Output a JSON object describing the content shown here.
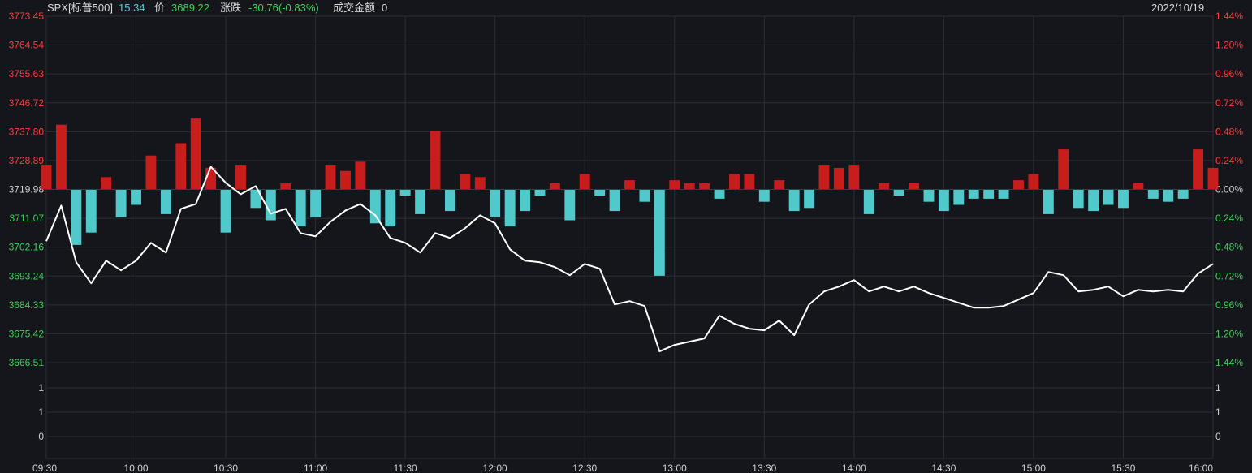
{
  "header": {
    "symbol": "SPX[标普500]",
    "time": "15:34",
    "price_label": "价",
    "price": "3689.22",
    "change_label": "涨跌",
    "change": "-30.76(-0.83%)",
    "amount_label": "成交金额",
    "amount": "0",
    "date": "2022/10/19"
  },
  "colors": {
    "background": "#14161b",
    "grid": "#2c2f36",
    "up": "#ff3b3b",
    "down": "#3fcf5a",
    "neutral": "#d0d0d0",
    "price_line": "#ffffff",
    "bar_up": "#c81d1d",
    "bar_down": "#4fc9c9"
  },
  "chart_data": {
    "type": "line",
    "ylim": [
      3666.51,
      3773.45
    ],
    "reference_price": 3719.98,
    "left_ticks": [
      "3773.45",
      "3764.54",
      "3755.63",
      "3746.72",
      "3737.80",
      "3728.89",
      "3719.98",
      "3711.07",
      "3702.16",
      "3693.24",
      "3684.33",
      "3675.42",
      "3666.51"
    ],
    "right_ticks": [
      "1.44%",
      "1.20%",
      "0.96%",
      "0.72%",
      "0.48%",
      "0.24%",
      "0.00%",
      "0.24%",
      "0.48%",
      "0.72%",
      "0.96%",
      "1.20%",
      "1.44%"
    ],
    "volume_left_ticks": [
      "1",
      "1",
      "0"
    ],
    "volume_right_ticks": [
      "1",
      "1",
      "0"
    ],
    "x_ticks": [
      "09:30",
      "10:00",
      "10:30",
      "11:00",
      "11:30",
      "12:00",
      "12:30",
      "13:00",
      "13:30",
      "14:00",
      "14:30",
      "15:00",
      "15:30",
      "16:00"
    ],
    "series": [
      {
        "x": [
          "09:30",
          "09:35",
          "09:40",
          "09:45",
          "09:50",
          "09:55",
          "10:00",
          "10:05",
          "10:10",
          "10:15",
          "10:20",
          "10:25",
          "10:30",
          "10:35",
          "10:40",
          "10:45",
          "10:50",
          "10:55",
          "11:00",
          "11:05",
          "11:10",
          "11:15",
          "11:20",
          "11:25",
          "11:30",
          "11:35",
          "11:40",
          "11:45",
          "11:50",
          "11:55",
          "12:00",
          "12:05",
          "12:10",
          "12:15",
          "12:20",
          "12:25",
          "12:30",
          "12:35",
          "12:40",
          "12:45",
          "12:50",
          "12:55",
          "13:00",
          "13:05",
          "13:10",
          "13:15",
          "13:20",
          "13:25",
          "13:30",
          "13:35",
          "13:40",
          "13:45",
          "13:50",
          "13:55",
          "14:00",
          "14:05",
          "14:10",
          "14:15",
          "14:20",
          "14:25",
          "14:30",
          "14:35",
          "14:40",
          "14:45",
          "14:50",
          "14:55",
          "15:00",
          "15:05",
          "15:10",
          "15:15",
          "15:20",
          "15:25",
          "15:30",
          "15:35",
          "15:40",
          "15:45",
          "15:50",
          "15:55",
          "16:00"
        ],
        "values": [
          3704.0,
          3715.0,
          3697.5,
          3691.0,
          3698.0,
          3695.0,
          3698.0,
          3703.5,
          3700.5,
          3714.0,
          3715.5,
          3727.0,
          3722.0,
          3718.5,
          3721.0,
          3712.5,
          3714.0,
          3706.5,
          3705.5,
          3710.0,
          3713.5,
          3715.5,
          3712.0,
          3705.0,
          3703.5,
          3700.5,
          3706.5,
          3705.0,
          3708.0,
          3712.0,
          3709.5,
          3701.5,
          3698.0,
          3697.5,
          3696.0,
          3693.5,
          3697.0,
          3695.5,
          3684.5,
          3685.5,
          3684.0,
          3670.0,
          3672.0,
          3673.0,
          3674.0,
          3681.0,
          3678.5,
          3677.0,
          3676.5,
          3679.5,
          3675.0,
          3684.5,
          3688.5,
          3690.0,
          3692.0,
          3688.5,
          3690.0,
          3688.5,
          3690.0,
          3688.0,
          3686.5,
          3685.0,
          3683.5,
          3683.5,
          3684.0,
          3686.0,
          3688.0,
          3694.5,
          3693.5,
          3688.5,
          3689.0,
          3690.0,
          3687.0,
          3689.0,
          3688.5,
          3689.0,
          3688.5,
          3694.0,
          3697.0
        ]
      },
      {
        "x": [
          "09:30",
          "09:35",
          "09:40",
          "09:45",
          "09:50",
          "09:55",
          "10:00",
          "10:05",
          "10:10",
          "10:15",
          "10:20",
          "10:25",
          "10:30",
          "10:35",
          "10:40",
          "10:45",
          "10:50",
          "10:55",
          "11:00",
          "11:05",
          "11:10",
          "11:15",
          "11:20",
          "11:25",
          "11:30",
          "11:35",
          "11:40",
          "11:45",
          "11:50",
          "11:55",
          "12:00",
          "12:05",
          "12:10",
          "12:15",
          "12:20",
          "12:25",
          "12:30",
          "12:35",
          "12:40",
          "12:45",
          "12:50",
          "12:55",
          "13:00",
          "13:05",
          "13:10",
          "13:15",
          "13:20",
          "13:25",
          "13:30",
          "13:35",
          "13:40",
          "13:45",
          "13:50",
          "13:55",
          "14:00",
          "14:05",
          "14:10",
          "14:15",
          "14:20",
          "14:25",
          "14:30",
          "14:35",
          "14:40",
          "14:45",
          "14:50",
          "14:55",
          "15:00",
          "15:05",
          "15:10",
          "15:15",
          "15:20",
          "15:25",
          "15:30",
          "15:35",
          "15:40",
          "15:45",
          "15:50",
          "15:55",
          "16:00"
        ],
        "values": [
          4.0,
          10.5,
          -9.0,
          -7.0,
          2.0,
          -4.5,
          -2.5,
          5.5,
          -4.0,
          7.5,
          11.5,
          3.5,
          -7.0,
          4.0,
          -3.0,
          -5.0,
          1.0,
          -6.0,
          -4.5,
          4.0,
          3.0,
          4.5,
          -5.5,
          -6.0,
          -1.0,
          -4.0,
          9.5,
          -3.5,
          2.5,
          2.0,
          -4.5,
          -6.0,
          -3.5,
          -1.0,
          1.0,
          -5.0,
          2.5,
          -1.0,
          -3.5,
          1.5,
          -2.0,
          -14.0,
          1.5,
          1.0,
          1.0,
          -1.5,
          2.5,
          2.5,
          -2.0,
          1.5,
          -3.5,
          -3.0,
          4.0,
          3.5,
          4.0,
          -4.0,
          1.0,
          -1.0,
          1.0,
          -2.0,
          -3.5,
          -2.5,
          -1.5,
          -1.5,
          -1.5,
          1.5,
          2.5,
          -4.0,
          6.5,
          -3.0,
          -3.5,
          -2.5,
          -3.0,
          1.0,
          -1.5,
          -2.0,
          -1.5,
          6.5,
          3.5
        ]
      }
    ]
  }
}
